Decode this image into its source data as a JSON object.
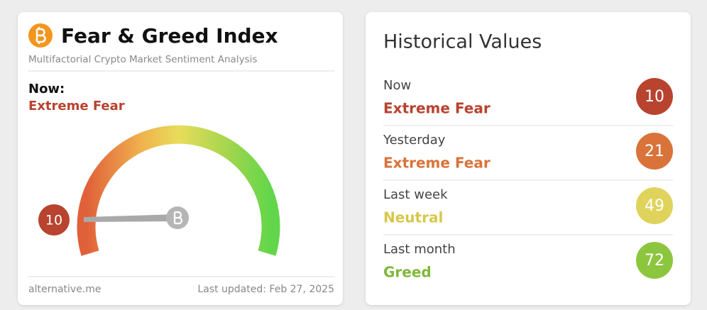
{
  "header": {
    "title": "Fear & Greed Index",
    "subtitle": "Multifactorial Crypto Market Sentiment Analysis"
  },
  "now": {
    "label": "Now:",
    "status": "Extreme Fear",
    "value": 10,
    "color": "#b8432f"
  },
  "footer": {
    "source": "alternative.me",
    "updated": "Last updated: Feb 27, 2025"
  },
  "history": {
    "title": "Historical Values",
    "rows": [
      {
        "label": "Now",
        "status": "Extreme Fear",
        "value": 10,
        "color": "#b8432f",
        "text_color": "#b8432f"
      },
      {
        "label": "Yesterday",
        "status": "Extreme Fear",
        "value": 21,
        "color": "#d9733a",
        "text_color": "#d9733a"
      },
      {
        "label": "Last week",
        "status": "Neutral",
        "value": 49,
        "color": "#dfd35c",
        "text_color": "#d6c84a"
      },
      {
        "label": "Last month",
        "status": "Greed",
        "value": 72,
        "color": "#8cc63f",
        "text_color": "#80b83a"
      }
    ]
  }
}
